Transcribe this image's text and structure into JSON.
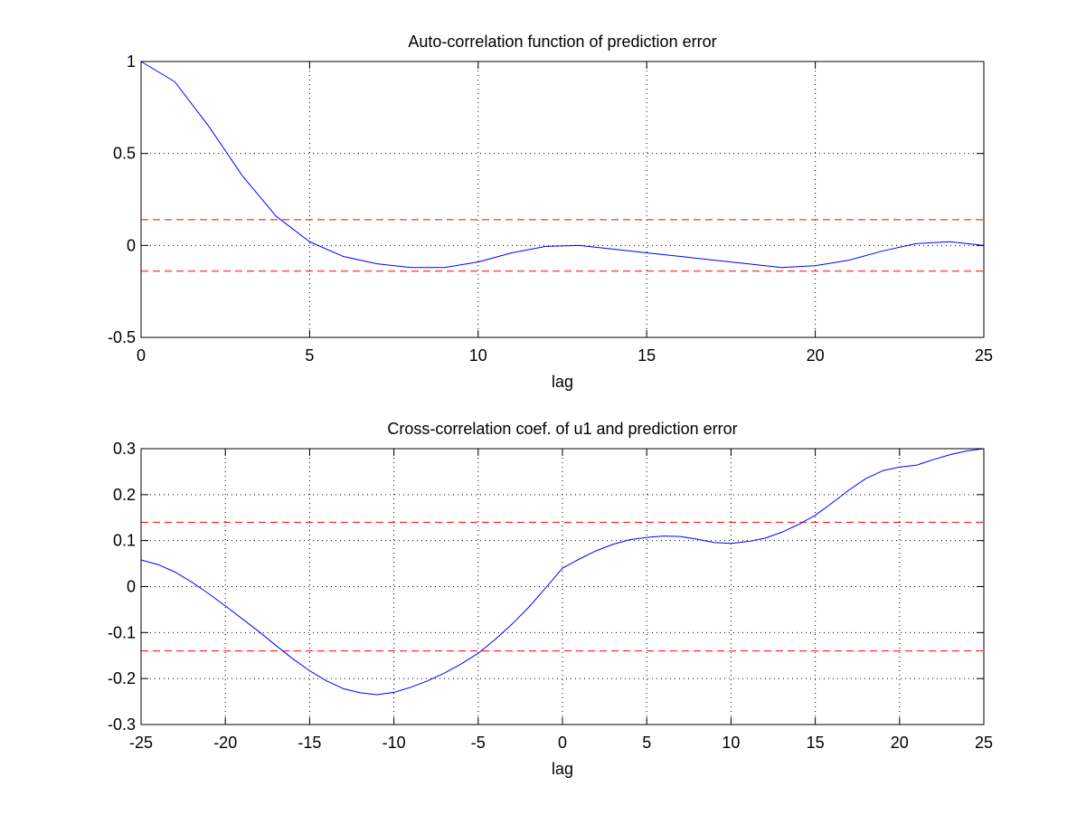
{
  "chart_data": [
    {
      "type": "line",
      "title": "Auto-correlation function of prediction error",
      "xlabel": "lag",
      "ylabel": "",
      "xlim": [
        0,
        25
      ],
      "ylim": [
        -0.5,
        1
      ],
      "xticks": [
        0,
        5,
        10,
        15,
        20,
        25
      ],
      "xtick_labels": [
        "0",
        "5",
        "10",
        "15",
        "20",
        "25"
      ],
      "yticks": [
        -0.5,
        0,
        0.5,
        1
      ],
      "ytick_labels": [
        "-0.5",
        "0",
        "0.5",
        "1"
      ],
      "grid": true,
      "confidence_bounds": [
        0.14,
        -0.14
      ],
      "colors": {
        "series": "#0000ff",
        "bounds": "#ff0000"
      },
      "series": [
        {
          "x": [
            0,
            1,
            2,
            3,
            4,
            5,
            6,
            7,
            8,
            9,
            10,
            11,
            12,
            13,
            14,
            15,
            16,
            17,
            18,
            19,
            20,
            21,
            22,
            23,
            24,
            25
          ],
          "values": [
            1.0,
            0.89,
            0.65,
            0.38,
            0.16,
            0.02,
            -0.06,
            -0.1,
            -0.12,
            -0.12,
            -0.09,
            -0.04,
            -0.005,
            0.0,
            -0.02,
            -0.04,
            -0.06,
            -0.08,
            -0.1,
            -0.12,
            -0.11,
            -0.08,
            -0.03,
            0.01,
            0.02,
            0.0
          ]
        }
      ]
    },
    {
      "type": "line",
      "title": "Cross-correlation coef. of u1 and prediction error",
      "xlabel": "lag",
      "ylabel": "",
      "xlim": [
        -25,
        25
      ],
      "ylim": [
        -0.3,
        0.3
      ],
      "xticks": [
        -25,
        -20,
        -15,
        -10,
        -5,
        0,
        5,
        10,
        15,
        20,
        25
      ],
      "xtick_labels": [
        "-25",
        "-20",
        "-15",
        "-10",
        "-5",
        "0",
        "5",
        "10",
        "15",
        "20",
        "25"
      ],
      "yticks": [
        -0.3,
        -0.2,
        -0.1,
        0,
        0.1,
        0.2,
        0.3
      ],
      "ytick_labels": [
        "-0.3",
        "-0.2",
        "-0.1",
        "0",
        "0.1",
        "0.2",
        "0.3"
      ],
      "grid": true,
      "confidence_bounds": [
        0.14,
        -0.14
      ],
      "colors": {
        "series": "#0000ff",
        "bounds": "#ff0000"
      },
      "series": [
        {
          "x": [
            -25,
            -24,
            -23,
            -22,
            -21,
            -20,
            -19,
            -18,
            -17,
            -16,
            -15,
            -14,
            -13,
            -12,
            -11,
            -10,
            -9,
            -8,
            -7,
            -6,
            -5,
            -4,
            -3,
            -2,
            -1,
            0,
            1,
            2,
            3,
            4,
            5,
            6,
            7,
            8,
            9,
            10,
            11,
            12,
            13,
            14,
            15,
            16,
            17,
            18,
            19,
            20,
            21,
            22,
            23,
            24,
            25
          ],
          "values": [
            0.058,
            0.048,
            0.032,
            0.01,
            -0.015,
            -0.042,
            -0.07,
            -0.098,
            -0.128,
            -0.157,
            -0.183,
            -0.205,
            -0.222,
            -0.231,
            -0.235,
            -0.23,
            -0.219,
            -0.205,
            -0.188,
            -0.168,
            -0.145,
            -0.115,
            -0.082,
            -0.045,
            -0.003,
            0.04,
            0.06,
            0.078,
            0.092,
            0.102,
            0.107,
            0.11,
            0.109,
            0.103,
            0.096,
            0.094,
            0.098,
            0.105,
            0.118,
            0.135,
            0.155,
            0.182,
            0.21,
            0.235,
            0.252,
            0.26,
            0.264,
            0.276,
            0.287,
            0.295,
            0.3
          ]
        }
      ]
    }
  ]
}
